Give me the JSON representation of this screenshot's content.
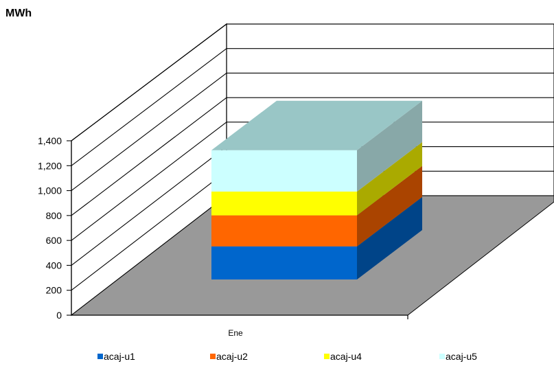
{
  "chart_data": {
    "type": "bar",
    "stacked": true,
    "three_d": true,
    "unit_label": "MWh",
    "categories": [
      "Ene"
    ],
    "series": [
      {
        "name": "acaj-u1",
        "values": [
          320
        ],
        "color": "#0066CC",
        "side_color": "#004488",
        "top_color": "#4D94DB"
      },
      {
        "name": "acaj-u2",
        "values": [
          300
        ],
        "color": "#FF6600",
        "side_color": "#AA4400",
        "top_color": "#FF944D"
      },
      {
        "name": "acaj-u4",
        "values": [
          230
        ],
        "color": "#FFFF00",
        "side_color": "#AAAA00",
        "top_color": "#FFFF66"
      },
      {
        "name": "acaj-u5",
        "values": [
          400
        ],
        "color": "#CCFFFF",
        "side_color": "#88A8A8",
        "top_color": "#99C6C6"
      }
    ],
    "y_ticks": [
      "0",
      "200",
      "400",
      "600",
      "800",
      "1,000",
      "1,200",
      "1,400"
    ],
    "ylim": [
      0,
      1400
    ],
    "grid": true,
    "legend_position": "bottom",
    "floor_color": "#999999"
  }
}
